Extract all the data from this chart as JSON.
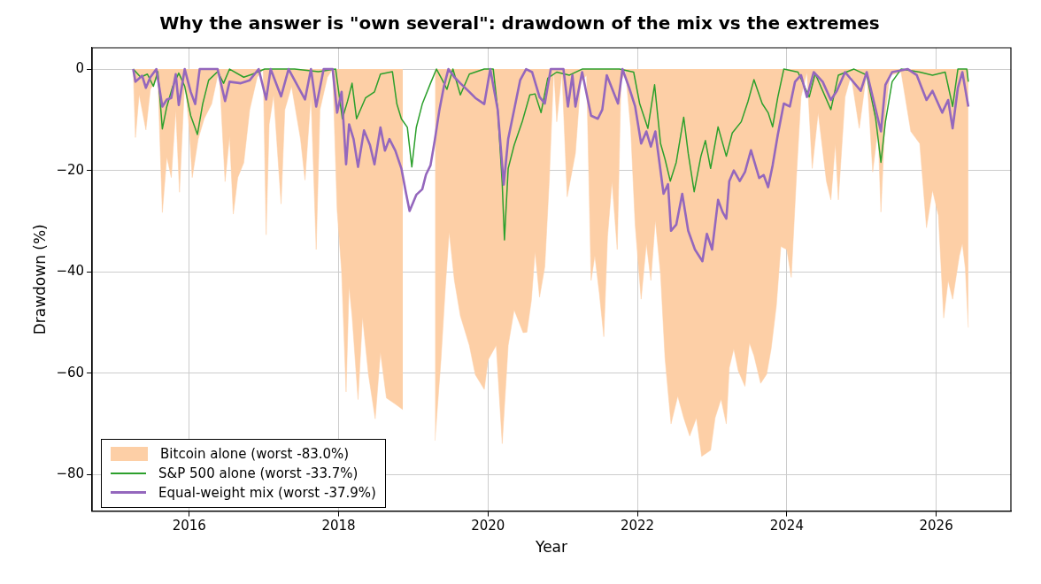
{
  "chart_data": {
    "type": "line",
    "title": "Why the answer is \"own several\": drawdown of the mix vs the extremes",
    "xlabel": "Year",
    "ylabel": "Drawdown (%)",
    "xlim": [
      2014.7,
      2027.0
    ],
    "xticks": [
      2016,
      2018,
      2020,
      2022,
      2024,
      2026
    ],
    "ylim": [
      -87.2,
      4.2
    ],
    "yticks": [
      -80,
      -60,
      -40,
      -20,
      0
    ],
    "grid": true,
    "legend": "bottom left",
    "series": [
      {
        "name": "Bitcoin alone (worst -83.0%)",
        "type": "area",
        "color": "#fdcfa6",
        "x": [
          2015.25,
          2015.28,
          2015.33,
          2015.42,
          2015.48,
          2015.58,
          2015.64,
          2015.7,
          2015.76,
          2015.82,
          2015.87,
          2015.94,
          2016.0,
          2016.04,
          2016.12,
          2016.2,
          2016.3,
          2016.4,
          2016.48,
          2016.54,
          2016.59,
          2016.65,
          2016.73,
          2016.81,
          2016.91,
          2016.99,
          2017.03,
          2017.07,
          2017.13,
          2017.23,
          2017.28,
          2017.37,
          2017.49,
          2017.55,
          2017.63,
          2017.7,
          2017.75,
          2017.85,
          2017.92,
          2017.98,
          2018.04,
          2018.1,
          2018.14,
          2018.18,
          2018.26,
          2018.32,
          2018.4,
          2018.49,
          2018.56,
          2018.64,
          2018.76,
          2018.86,
          2018.95,
          2019.05,
          2019.15,
          2019.25,
          2019.29,
          2019.37,
          2019.43,
          2019.48,
          2019.55,
          2019.63,
          2019.75,
          2019.83,
          2019.95,
          2020.0,
          2020.11,
          2020.19,
          2020.27,
          2020.35,
          2020.47,
          2020.52,
          2020.58,
          2020.63,
          2020.69,
          2020.76,
          2020.82,
          2020.88,
          2020.92,
          2020.99,
          2021.06,
          2021.17,
          2021.24,
          2021.32,
          2021.38,
          2021.43,
          2021.49,
          2021.55,
          2021.6,
          2021.66,
          2021.73,
          2021.78,
          2021.84,
          2021.91,
          2021.97,
          2022.05,
          2022.12,
          2022.18,
          2022.24,
          2022.31,
          2022.37,
          2022.45,
          2022.54,
          2022.62,
          2022.7,
          2022.79,
          2022.86,
          2022.98,
          2023.04,
          2023.12,
          2023.19,
          2023.23,
          2023.29,
          2023.35,
          2023.44,
          2023.5,
          2023.56,
          2023.65,
          2023.73,
          2023.79,
          2023.86,
          2023.92,
          2024.0,
          2024.06,
          2024.13,
          2024.19,
          2024.27,
          2024.34,
          2024.42,
          2024.53,
          2024.59,
          2024.65,
          2024.69,
          2024.78,
          2024.86,
          2024.97,
          2025.07,
          2025.15,
          2025.22,
          2025.26,
          2025.32,
          2025.38,
          2025.53,
          2025.66,
          2025.78,
          2025.87,
          2025.95,
          2026.03,
          2026.1,
          2026.16,
          2026.22,
          2026.31,
          2026.35,
          2026.39,
          2026.43
        ],
        "values": [
          0,
          -13.5,
          -5,
          -12,
          -4,
          -1.6,
          -28.3,
          -17.3,
          -21.4,
          -8,
          -24.3,
          -2.2,
          -11.5,
          -21.4,
          -13.8,
          -9.8,
          -6.9,
          0,
          -22.2,
          -13.2,
          -28.6,
          -21.4,
          -18.5,
          -8,
          -1.6,
          0,
          -32.7,
          -10.9,
          -5.1,
          -26.6,
          -8,
          -3.4,
          -13.8,
          -21.9,
          -5.1,
          -35.6,
          -8,
          -1.6,
          0,
          -27.8,
          -39.9,
          -63.7,
          -42.8,
          -48.7,
          -65.2,
          -48.9,
          -60.3,
          -69,
          -55.9,
          -64.9,
          -66.1,
          -67.2,
          null,
          null,
          null,
          null,
          -73.3,
          -57.4,
          -42.8,
          -32.1,
          -41.7,
          -48.7,
          -54.5,
          -60.3,
          -63.2,
          -57.4,
          -54.5,
          -73.9,
          -54.5,
          -47.5,
          -52,
          -51.9,
          -45.7,
          -36,
          -45,
          -39,
          -22,
          0,
          -10.4,
          -0.6,
          -25.2,
          -16.6,
          -2.5,
          -1.2,
          -41.7,
          -36.8,
          -44.2,
          -52.8,
          -33.1,
          -22.1,
          -35.6,
          -2.5,
          -0.3,
          -11.7,
          -30.7,
          -45.4,
          -34.4,
          -41.7,
          -29.8,
          -40.5,
          -57.1,
          -70,
          -64.5,
          -68.8,
          -72.4,
          -68.8,
          -76.4,
          -75.2,
          -68.8,
          -65.1,
          -70,
          -58.9,
          -55.2,
          -59.5,
          -62.6,
          -54,
          -56.5,
          -62,
          -60.2,
          -55.2,
          -46.7,
          -35,
          -35.6,
          -41.1,
          -20.9,
          -5.5,
          -0.6,
          -19.6,
          -8.6,
          -22.1,
          -25.8,
          -14.7,
          -25.8,
          -5.5,
          -1.2,
          -11.7,
          -0.6,
          -20.3,
          -11.7,
          -28.2,
          -8.6,
          -1.2,
          -0.6,
          -12.3,
          -14.7,
          -31.3,
          -23.9,
          -28.9,
          -49.1,
          -41.7,
          -45.4,
          -36.8,
          -34.4,
          -39.3,
          -51
        ]
      },
      {
        "name": "S&P 500 alone (worst -33.7%)",
        "type": "line",
        "color": "#2ca02c",
        "x": [
          2015.25,
          2015.35,
          2015.44,
          2015.52,
          2015.58,
          2015.64,
          2015.7,
          2015.78,
          2015.86,
          2015.94,
          2016.02,
          2016.11,
          2016.18,
          2016.26,
          2016.38,
          2016.46,
          2016.54,
          2016.73,
          2016.85,
          2017.01,
          2017.41,
          2017.73,
          2017.96,
          2018.05,
          2018.12,
          2018.18,
          2018.24,
          2018.36,
          2018.48,
          2018.56,
          2018.72,
          2018.78,
          2018.84,
          2018.92,
          2018.98,
          2019.04,
          2019.12,
          2019.23,
          2019.31,
          2019.39,
          2019.45,
          2019.53,
          2019.63,
          2019.75,
          2019.95,
          2020.07,
          2020.13,
          2020.19,
          2020.22,
          2020.27,
          2020.35,
          2020.46,
          2020.56,
          2020.63,
          2020.71,
          2020.8,
          2020.92,
          2021.09,
          2021.26,
          2021.51,
          2021.76,
          2021.95,
          2022.03,
          2022.14,
          2022.23,
          2022.31,
          2022.37,
          2022.44,
          2022.52,
          2022.62,
          2022.68,
          2022.76,
          2022.85,
          2022.91,
          2022.98,
          2023.08,
          2023.19,
          2023.27,
          2023.39,
          2023.48,
          2023.56,
          2023.67,
          2023.75,
          2023.81,
          2023.88,
          2023.96,
          2024.15,
          2024.3,
          2024.38,
          2024.59,
          2024.69,
          2024.9,
          2025.07,
          2025.19,
          2025.26,
          2025.32,
          2025.41,
          2025.53,
          2025.78,
          2025.95,
          2026.12,
          2026.22,
          2026.29,
          2026.41,
          2026.43
        ],
        "values": [
          0,
          -1.6,
          -1,
          -3.4,
          -0.5,
          -11.8,
          -7.4,
          -3.4,
          -0.8,
          -3.4,
          -9.2,
          -12.9,
          -6.9,
          -2.2,
          -0.5,
          -2.8,
          0,
          -1.6,
          -1,
          0,
          0,
          -0.5,
          0,
          -9.8,
          -6.3,
          -2.8,
          -9.8,
          -5.7,
          -4.5,
          -1,
          -0.5,
          -6.9,
          -9.8,
          -11.5,
          -19.3,
          -11.5,
          -6.9,
          -2.8,
          0,
          -2.2,
          -4,
          0,
          -5.1,
          -1,
          0,
          0,
          -8,
          -22.5,
          -33.7,
          -19.6,
          -15,
          -10.3,
          -5.1,
          -4.9,
          -8.6,
          -1.8,
          -0.6,
          -1.2,
          0,
          0,
          0,
          -0.6,
          -6.8,
          -11.7,
          -3.1,
          -14.7,
          -17.8,
          -22.1,
          -18.4,
          -9.5,
          -16.6,
          -24.2,
          -17.2,
          -14.1,
          -19.6,
          -11.4,
          -17.2,
          -12.6,
          -10.4,
          -6.4,
          -2.1,
          -6.8,
          -8.6,
          -11.4,
          -5.5,
          0,
          -0.6,
          -5.5,
          -0.9,
          -8,
          -1.2,
          0,
          -1.2,
          -9.8,
          -18.4,
          -10.4,
          -2.5,
          0,
          -0.6,
          -1.2,
          -0.6,
          -7.4,
          0,
          0,
          -2.5
        ]
      },
      {
        "name": "Equal-weight mix (worst -37.9%)",
        "type": "line",
        "color": "#9467bd",
        "x": [
          2015.25,
          2015.28,
          2015.37,
          2015.42,
          2015.48,
          2015.56,
          2015.64,
          2015.7,
          2015.76,
          2015.82,
          2015.86,
          2015.94,
          2016.02,
          2016.08,
          2016.14,
          2016.38,
          2016.48,
          2016.54,
          2016.69,
          2016.81,
          2016.93,
          2017.03,
          2017.09,
          2017.23,
          2017.33,
          2017.55,
          2017.63,
          2017.7,
          2017.8,
          2017.92,
          2017.98,
          2018.04,
          2018.1,
          2018.14,
          2018.2,
          2018.26,
          2018.34,
          2018.42,
          2018.48,
          2018.56,
          2018.62,
          2018.68,
          2018.76,
          2018.84,
          2018.9,
          2018.95,
          2019.04,
          2019.12,
          2019.17,
          2019.23,
          2019.29,
          2019.35,
          2019.41,
          2019.47,
          2019.55,
          2019.63,
          2019.75,
          2019.83,
          2019.95,
          2020.03,
          2020.13,
          2020.21,
          2020.27,
          2020.35,
          2020.43,
          2020.51,
          2020.59,
          2020.69,
          2020.76,
          2020.84,
          2021.01,
          2021.07,
          2021.13,
          2021.17,
          2021.26,
          2021.38,
          2021.47,
          2021.53,
          2021.59,
          2021.74,
          2021.8,
          2021.89,
          2021.97,
          2022.05,
          2022.12,
          2022.18,
          2022.24,
          2022.35,
          2022.41,
          2022.45,
          2022.52,
          2022.6,
          2022.68,
          2022.77,
          2022.87,
          2022.93,
          2023.0,
          2023.08,
          2023.14,
          2023.19,
          2023.23,
          2023.29,
          2023.37,
          2023.44,
          2023.52,
          2023.63,
          2023.69,
          2023.75,
          2023.81,
          2023.88,
          2023.96,
          2024.04,
          2024.11,
          2024.19,
          2024.27,
          2024.36,
          2024.48,
          2024.59,
          2024.67,
          2024.78,
          2024.99,
          2025.07,
          2025.15,
          2025.26,
          2025.32,
          2025.41,
          2025.62,
          2025.74,
          2025.87,
          2025.95,
          2026.08,
          2026.16,
          2026.22,
          2026.29,
          2026.35,
          2026.43
        ],
        "values": [
          0,
          -2.5,
          -1.3,
          -3.7,
          -1.6,
          0,
          -7.4,
          -6,
          -5.7,
          -1,
          -7.1,
          0,
          -4.5,
          -6.9,
          0,
          0,
          -6.3,
          -2.5,
          -2.8,
          -2.2,
          0,
          -6,
          0,
          -5.4,
          0,
          -6,
          0,
          -7.4,
          0,
          0,
          -8.6,
          -4.5,
          -18.8,
          -10.9,
          -13.8,
          -19.3,
          -12.1,
          -15,
          -18.8,
          -11.5,
          -16.1,
          -13.8,
          -16.1,
          -19.6,
          -24.3,
          -28,
          -24.8,
          -23.7,
          -20.8,
          -19,
          -13.8,
          -8,
          -3.4,
          0,
          -1.6,
          -2.8,
          -4.5,
          -5.7,
          -6.9,
          0,
          -8,
          -22.8,
          -13.8,
          -8,
          -2.2,
          0,
          -0.6,
          -5.5,
          -6.8,
          0,
          0,
          -7.4,
          -1.2,
          -7.4,
          -0.6,
          -9.2,
          -9.8,
          -8,
          -1.2,
          -6.8,
          0,
          -3.7,
          -7.4,
          -14.7,
          -12.3,
          -15.3,
          -12.3,
          -24.6,
          -22.7,
          -31.9,
          -30.7,
          -24.6,
          -31.9,
          -35.6,
          -37.9,
          -32.5,
          -35.6,
          -25.8,
          -28.2,
          -29.5,
          -22.1,
          -20,
          -22.1,
          -20.3,
          -16,
          -21.5,
          -20.9,
          -23.3,
          -19,
          -12.9,
          -6.8,
          -7.4,
          -2.5,
          -1.2,
          -5.5,
          -0.6,
          -2.5,
          -6.1,
          -4.3,
          -0.6,
          -4.3,
          -0.6,
          -5.5,
          -12.3,
          -3.1,
          -0.6,
          0,
          -1.2,
          -6.1,
          -4.3,
          -8.6,
          -6.1,
          -11.7,
          -3.7,
          -0.6,
          -7.4
        ]
      }
    ]
  }
}
